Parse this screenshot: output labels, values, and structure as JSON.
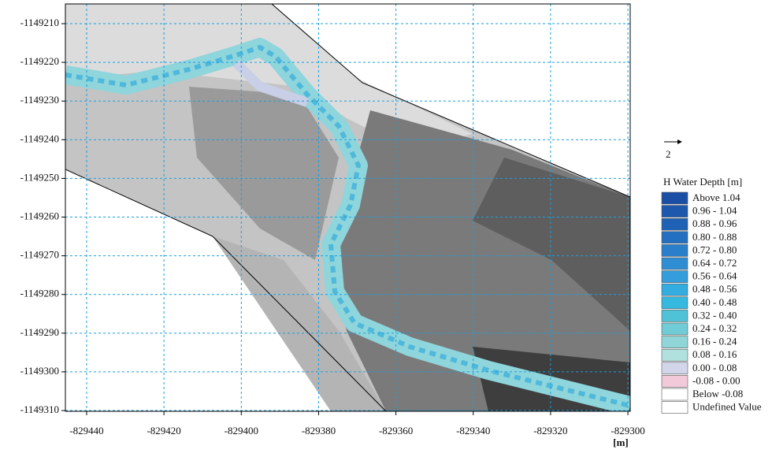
{
  "axes": {
    "xlim": [
      -829445.5,
      -829299.4
    ],
    "ylim": [
      -1149310.2,
      -1149204.9
    ],
    "xticks": [
      -829440,
      -829420,
      -829400,
      -829380,
      -829360,
      -829340,
      -829320,
      -829300
    ],
    "yticks": [
      -1149210,
      -1149220,
      -1149230,
      -1149240,
      -1149250,
      -1149260,
      -1149270,
      -1149280,
      -1149290,
      -1149300,
      -1149310
    ],
    "unit": "[m]",
    "grid_color": "#1a9fe0"
  },
  "vector_scale": "2",
  "legend": {
    "title": "H Water Depth [m]",
    "entries": [
      {
        "label": "Above  1.04",
        "color": "#1b4fa6"
      },
      {
        "label": "0.96 - 1.04",
        "color": "#1d58ad"
      },
      {
        "label": "0.88 - 0.96",
        "color": "#1f62b5"
      },
      {
        "label": "0.80 - 0.88",
        "color": "#2470c0"
      },
      {
        "label": "0.72 - 0.80",
        "color": "#2a7fca"
      },
      {
        "label": "0.64 - 0.72",
        "color": "#2f8ed3"
      },
      {
        "label": "0.56 - 0.64",
        "color": "#349ddb"
      },
      {
        "label": "0.48 - 0.56",
        "color": "#34ace0"
      },
      {
        "label": "0.40 - 0.48",
        "color": "#35b9df"
      },
      {
        "label": "0.32 - 0.40",
        "color": "#4fc2d8"
      },
      {
        "label": "0.24 - 0.32",
        "color": "#70ccd6"
      },
      {
        "label": "0.16 - 0.24",
        "color": "#90d6d8"
      },
      {
        "label": "0.08 - 0.16",
        "color": "#b1e1df"
      },
      {
        "label": "0.00 - 0.08",
        "color": "#d3d6ea"
      },
      {
        "label": "-0.08 - 0.00",
        "color": "#f2c9d9"
      },
      {
        "label": "Below -0.08",
        "color": "#ffffff"
      },
      {
        "label": "Undefined Value",
        "color": "#ffffff"
      }
    ]
  }
}
